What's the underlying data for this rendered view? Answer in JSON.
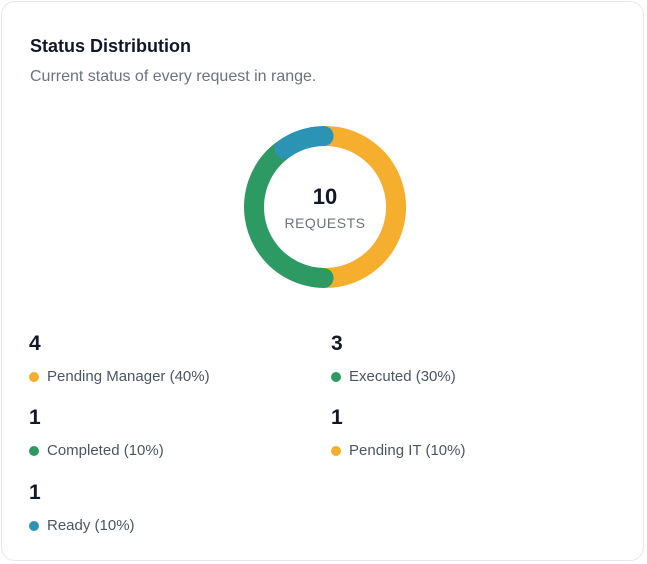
{
  "card": {
    "title": "Status Distribution",
    "subtitle": "Current status of every request in range."
  },
  "chart_data": {
    "type": "pie",
    "variant": "donut",
    "center_value": "10",
    "center_label": "REQUESTS",
    "slices": [
      {
        "label": "Pending Manager",
        "value": 4,
        "percent": "40%",
        "color": "#f5ae2e"
      },
      {
        "label": "Executed",
        "value": 3,
        "percent": "30%",
        "color": "#2c9a62"
      },
      {
        "label": "Completed",
        "value": 1,
        "percent": "10%",
        "color": "#2c9a62"
      },
      {
        "label": "Pending IT",
        "value": 1,
        "percent": "10%",
        "color": "#f5ae2e"
      },
      {
        "label": "Ready",
        "value": 1,
        "percent": "10%",
        "color": "#2b93b4"
      }
    ]
  },
  "legend": [
    {
      "count": "4",
      "text": "Pending Manager (40%)",
      "color": "#f5ae2e"
    },
    {
      "count": "3",
      "text": "Executed (30%)",
      "color": "#2c9a62"
    },
    {
      "count": "1",
      "text": "Completed (10%)",
      "color": "#2c9a62"
    },
    {
      "count": "1",
      "text": "Pending IT (10%)",
      "color": "#f5ae2e"
    },
    {
      "count": "1",
      "text": "Ready (10%)",
      "color": "#2b93b4"
    }
  ]
}
